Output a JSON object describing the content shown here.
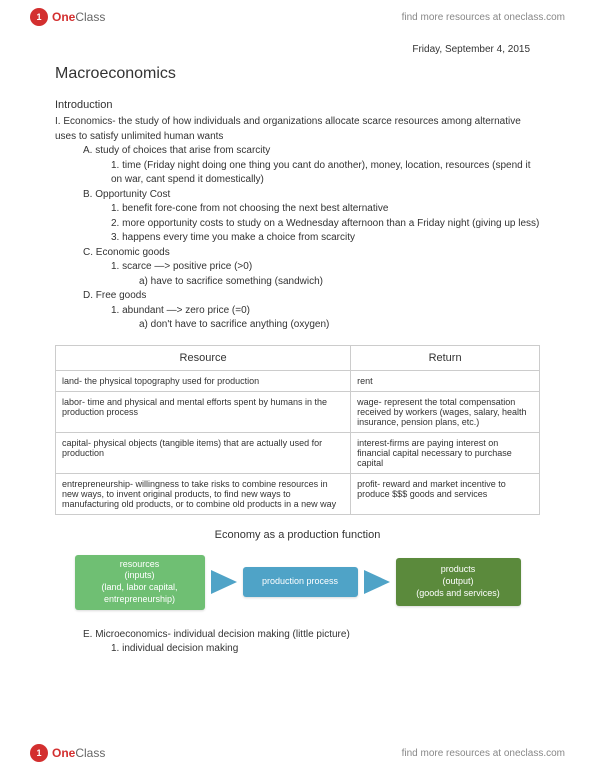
{
  "brand": {
    "name_one": "One",
    "name_class": "Class",
    "icon_glyph": "1"
  },
  "header_link": "find more resources at oneclass.com",
  "footer_link": "find more resources at oneclass.com",
  "date": "Friday, September 4, 2015",
  "title": "Macroeconomics",
  "intro_heading": "Introduction",
  "outline": {
    "i": "I.   Economics- the study of how individuals and organizations allocate scarce resources among alternative uses to satisfy unlimited human wants",
    "a": "A.  study of choices that arise from scarcity",
    "a1": "1.  time (Friday night doing one thing you cant do another), money, location, resources (spend it on war, cant spend it domestically)",
    "b": "B.  Opportunity Cost",
    "b1": "1.  benefit fore-cone from not choosing the next best alternative",
    "b2": "2.  more opportunity costs to study on a Wednesday afternoon than a Friday night (giving up less)",
    "b3": "3.  happens every time you make a choice from scarcity",
    "c": "C.  Economic goods",
    "c1": "1.  scarce —> positive price (>0)",
    "c1a": "a)  have to sacrifice something (sandwich)",
    "d": "D.  Free goods",
    "d1": "1.  abundant —> zero price (=0)",
    "d1a": "a)  don't have to sacrifice anything (oxygen)",
    "e": "E.  Microeconomics- individual decision making (little picture)",
    "e1": "1.  individual decision making"
  },
  "table": {
    "headers": [
      "Resource",
      "Return"
    ],
    "rows": [
      [
        "land- the physical topography used for production",
        "rent"
      ],
      [
        "labor- time and physical and mental efforts spent by humans in the production process",
        "wage- represent the total compensation received by workers (wages, salary, health insurance, pension plans, etc.)"
      ],
      [
        "capital- physical objects (tangible items) that are actually used for production",
        "interest-firms are paying interest on financial capital necessary to purchase capital"
      ],
      [
        "entrepreneurship- willingness to take risks to combine resources in new ways, to invent original products, to find new ways to manufacturing old products, or to combine old products in a new way",
        "profit- reward and market incentive to produce $$$ goods and services"
      ]
    ]
  },
  "diagram": {
    "title": "Economy as a production function",
    "inputs": {
      "l1": "resources",
      "l2": "(inputs)",
      "l3": "(land, labor capital,",
      "l4": "entrepreneurship)"
    },
    "process": "production process",
    "outputs": {
      "l1": "products",
      "l2": "(output)",
      "l3": "(goods and services)"
    },
    "colors": {
      "inputs": "#6fbf73",
      "process": "#4fa3c7",
      "outputs": "#5b8a3c",
      "arrow": "#4fa3c7"
    }
  }
}
